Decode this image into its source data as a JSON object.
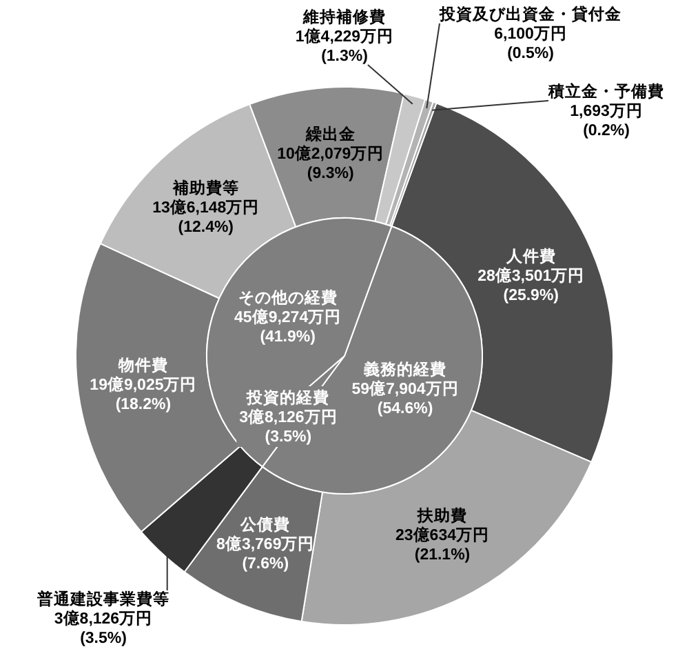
{
  "chart_data": [
    {
      "type": "donut",
      "categories": [
        "人件費",
        "扶助費",
        "公債費",
        "普通建設事業費等",
        "物件費",
        "補助費等",
        "繰出金",
        "維持補修費",
        "投資及び出資金・貸付金",
        "積立金・予備費"
      ],
      "values": [
        25.9,
        21.1,
        7.6,
        3.5,
        18.2,
        12.4,
        9.3,
        1.3,
        0.5,
        0.2
      ],
      "value_labels": [
        "28億3,501万円\n(25.9%)",
        "23億634万円\n(21.1%)",
        "8億3,769万円\n(7.6%)",
        "3億8,126万円\n(3.5%)",
        "19億9,025万円\n(18.2%)",
        "13億6,148万円\n(12.4%)",
        "10億2,079万円\n(9.3%)",
        "1億4,229万円\n(1.3%)",
        "6,100万円\n(0.5%)",
        "1,693万円\n(0.2%)"
      ],
      "colors": [
        "#4d4d4d",
        "#a6a6a6",
        "#6e6e6e",
        "#333333",
        "#7a7a7a",
        "#bdbdbd",
        "#8c8c8c",
        "#c8c8c8",
        "#b3b3b3",
        "#a0a0a0"
      ]
    },
    {
      "type": "pie",
      "categories": [
        "義務的経費",
        "投資的経費",
        "その他の経費"
      ],
      "values": [
        54.6,
        3.5,
        41.9
      ],
      "value_labels": [
        "59億7,904万円\n(54.6%)",
        "3億8,126万円\n(3.5%)",
        "45億9,274万円\n(41.9%)"
      ],
      "colors": [
        "#7f7f7f",
        "#7f7f7f",
        "#7f7f7f"
      ]
    }
  ]
}
